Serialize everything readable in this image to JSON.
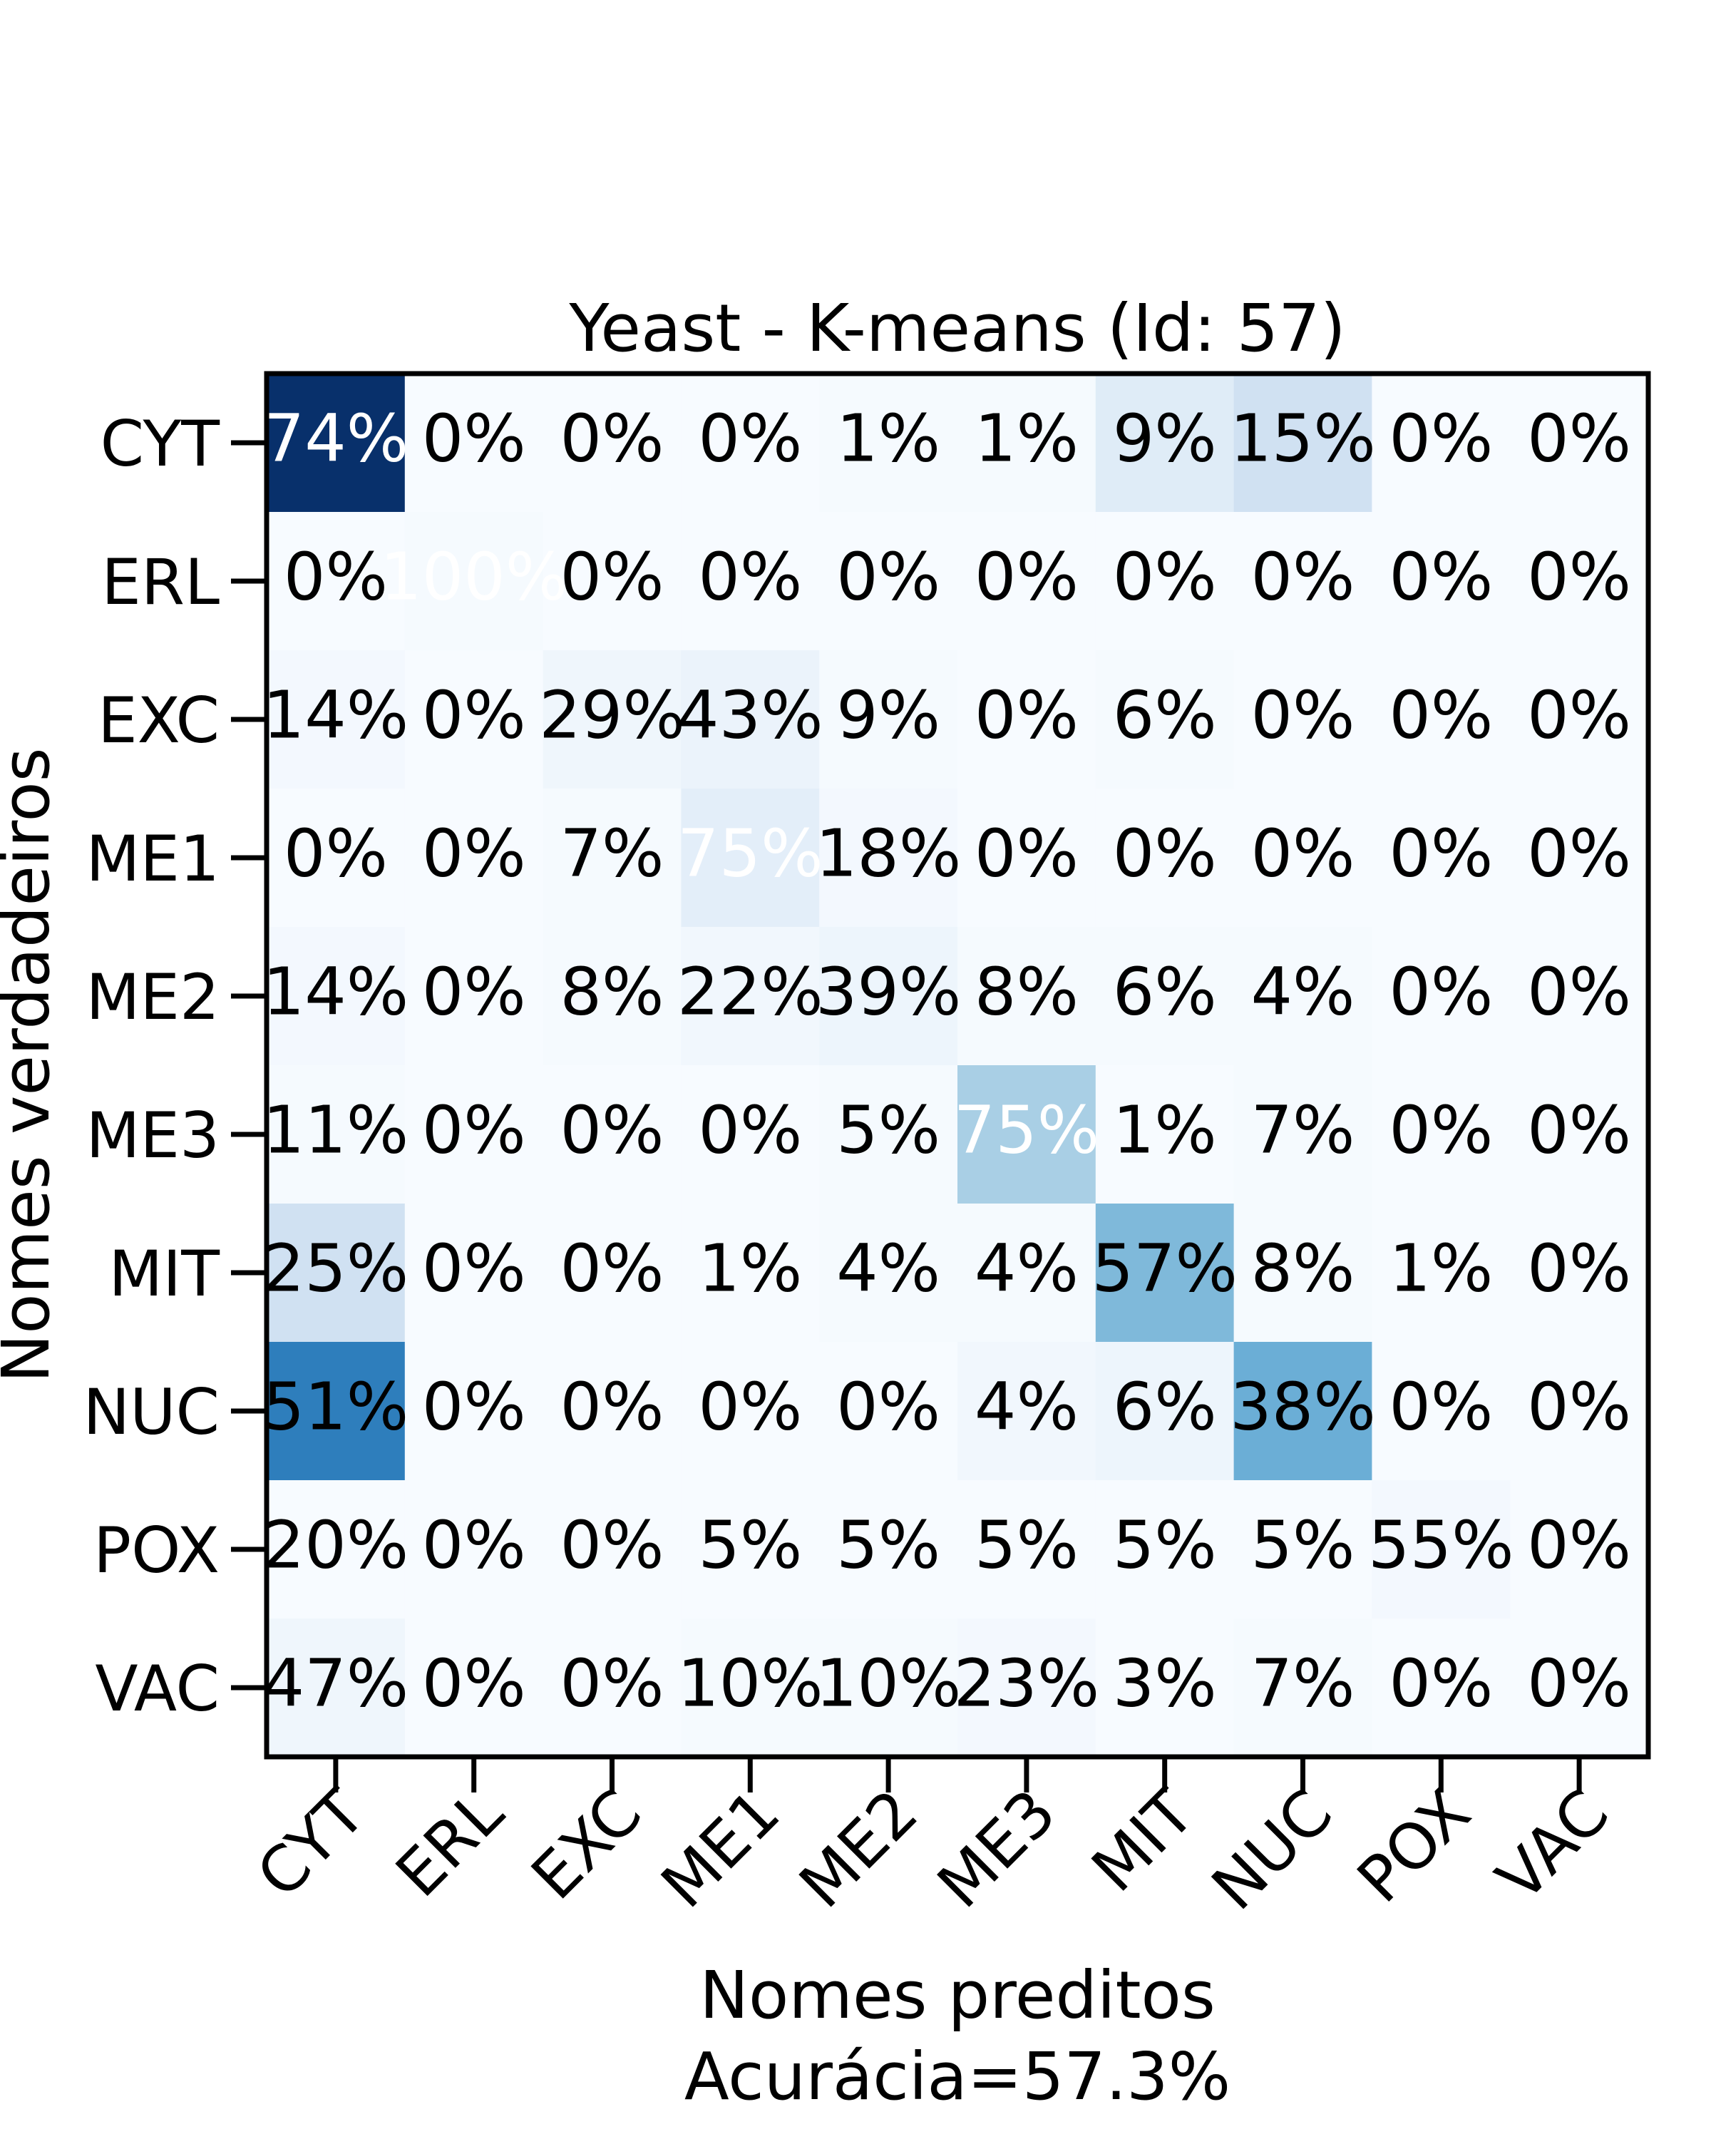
{
  "chart_data": {
    "type": "heatmap",
    "title": "Yeast - K-means (Id: 57)",
    "xlabel": "Nomes preditos",
    "xlabel_sub": "Acurácia=57.3%",
    "ylabel": "Nomes verdadeiros",
    "x_categories": [
      "CYT",
      "ERL",
      "EXC",
      "ME1",
      "ME2",
      "ME3",
      "MIT",
      "NUC",
      "POX",
      "VAC"
    ],
    "y_categories": [
      "CYT",
      "ERL",
      "EXC",
      "ME1",
      "ME2",
      "ME3",
      "MIT",
      "NUC",
      "POX",
      "VAC"
    ],
    "values": [
      [
        74,
        0,
        0,
        0,
        1,
        1,
        9,
        15,
        0,
        0
      ],
      [
        0,
        100,
        0,
        0,
        0,
        0,
        0,
        0,
        0,
        0
      ],
      [
        14,
        0,
        29,
        43,
        9,
        0,
        6,
        0,
        0,
        0
      ],
      [
        0,
        0,
        7,
        75,
        18,
        0,
        0,
        0,
        0,
        0
      ],
      [
        14,
        0,
        8,
        22,
        39,
        8,
        6,
        4,
        0,
        0
      ],
      [
        11,
        0,
        0,
        0,
        5,
        75,
        1,
        7,
        0,
        0
      ],
      [
        25,
        0,
        0,
        1,
        4,
        4,
        57,
        8,
        1,
        0
      ],
      [
        51,
        0,
        0,
        0,
        0,
        4,
        6,
        38,
        0,
        0
      ],
      [
        20,
        0,
        0,
        5,
        5,
        5,
        5,
        5,
        55,
        0
      ],
      [
        47,
        0,
        0,
        10,
        10,
        23,
        3,
        7,
        0,
        0
      ]
    ],
    "cell_labels": [
      [
        "74%",
        "0%",
        "0%",
        "0%",
        "1%",
        "1%",
        "9%",
        "15%",
        "0%",
        "0%"
      ],
      [
        "0%",
        "100%",
        "0%",
        "0%",
        "0%",
        "0%",
        "0%",
        "0%",
        "0%",
        "0%"
      ],
      [
        "14%",
        "0%",
        "29%",
        "43%",
        "9%",
        "0%",
        "6%",
        "0%",
        "0%",
        "0%"
      ],
      [
        "0%",
        "0%",
        "7%",
        "75%",
        "18%",
        "0%",
        "0%",
        "0%",
        "0%",
        "0%"
      ],
      [
        "14%",
        "0%",
        "8%",
        "22%",
        "39%",
        "8%",
        "6%",
        "4%",
        "0%",
        "0%"
      ],
      [
        "11%",
        "0%",
        "0%",
        "0%",
        "5%",
        "75%",
        "1%",
        "7%",
        "0%",
        "0%"
      ],
      [
        "25%",
        "0%",
        "0%",
        "1%",
        "4%",
        "4%",
        "57%",
        "8%",
        "1%",
        "0%"
      ],
      [
        "51%",
        "0%",
        "0%",
        "0%",
        "0%",
        "4%",
        "6%",
        "38%",
        "0%",
        "0%"
      ],
      [
        "20%",
        "0%",
        "0%",
        "5%",
        "5%",
        "5%",
        "5%",
        "5%",
        "55%",
        "0%"
      ],
      [
        "47%",
        "0%",
        "0%",
        "10%",
        "10%",
        "23%",
        "3%",
        "7%",
        "0%",
        "0%"
      ]
    ],
    "cell_shade": [
      [
        1.0,
        0.0,
        0.0,
        0.0,
        0.01,
        0.01,
        0.12,
        0.2,
        0.0,
        0.0
      ],
      [
        0.0,
        0.01,
        0.0,
        0.0,
        0.0,
        0.0,
        0.0,
        0.0,
        0.0,
        0.0
      ],
      [
        0.02,
        0.0,
        0.04,
        0.06,
        0.01,
        0.0,
        0.01,
        0.0,
        0.0,
        0.0
      ],
      [
        0.0,
        0.0,
        0.01,
        0.1,
        0.02,
        0.0,
        0.0,
        0.0,
        0.0,
        0.0
      ],
      [
        0.02,
        0.0,
        0.01,
        0.03,
        0.05,
        0.01,
        0.01,
        0.01,
        0.0,
        0.0
      ],
      [
        0.01,
        0.0,
        0.0,
        0.0,
        0.01,
        0.34,
        0.0,
        0.01,
        0.0,
        0.0
      ],
      [
        0.2,
        0.0,
        0.0,
        0.0,
        0.01,
        0.01,
        0.45,
        0.01,
        0.0,
        0.0
      ],
      [
        0.7,
        0.0,
        0.0,
        0.0,
        0.0,
        0.03,
        0.05,
        0.5,
        0.0,
        0.0
      ],
      [
        0.0,
        0.0,
        0.0,
        0.0,
        0.0,
        0.0,
        0.0,
        0.0,
        0.02,
        0.0
      ],
      [
        0.04,
        0.0,
        0.0,
        0.01,
        0.01,
        0.02,
        0.0,
        0.01,
        0.0,
        0.0
      ]
    ],
    "white_text_cells": [
      [
        0,
        0
      ],
      [
        1,
        1
      ],
      [
        3,
        3
      ],
      [
        5,
        5
      ]
    ],
    "colormap": "Blues",
    "grid": false,
    "legend": "none"
  },
  "colors": {
    "axis": "#000000",
    "text_dark": "#000000",
    "text_light": "#ffffff",
    "cmap_low": "#f7fbff",
    "cmap_high": "#08306b"
  }
}
